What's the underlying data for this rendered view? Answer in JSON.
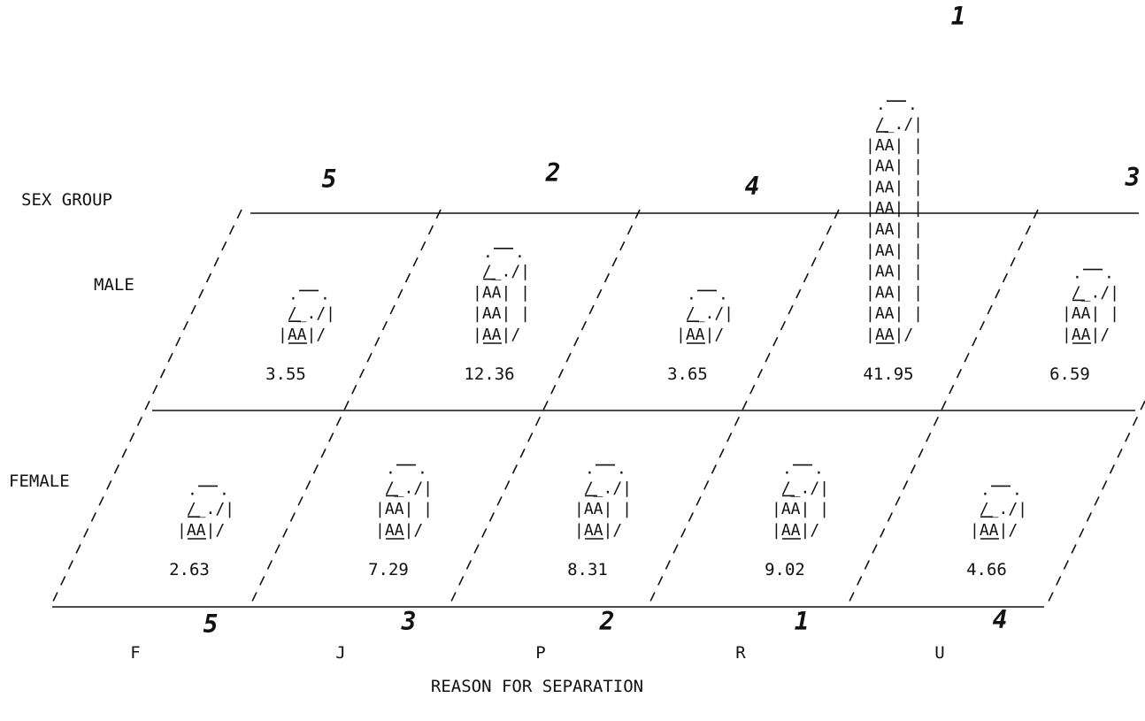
{
  "chart_data": {
    "type": "bar",
    "subtype": "3d-crosstab",
    "row_axis_title": "SEX GROUP",
    "column_axis_title": "REASON FOR SEPARATION",
    "categories": [
      "F",
      "J",
      "P",
      "R",
      "U"
    ],
    "rows": [
      "MALE",
      "FEMALE"
    ],
    "series": [
      {
        "name": "MALE",
        "values": [
          3.55,
          12.36,
          3.65,
          41.95,
          6.59
        ]
      },
      {
        "name": "FEMALE",
        "values": [
          2.63,
          7.29,
          8.31,
          9.02,
          4.66
        ]
      }
    ],
    "handwritten_ranks": {
      "male": [
        "5",
        "2",
        "4",
        "1",
        "3"
      ],
      "female": [
        "5",
        "3",
        "2",
        "1",
        "4"
      ]
    },
    "bar_glyph": "AA"
  }
}
